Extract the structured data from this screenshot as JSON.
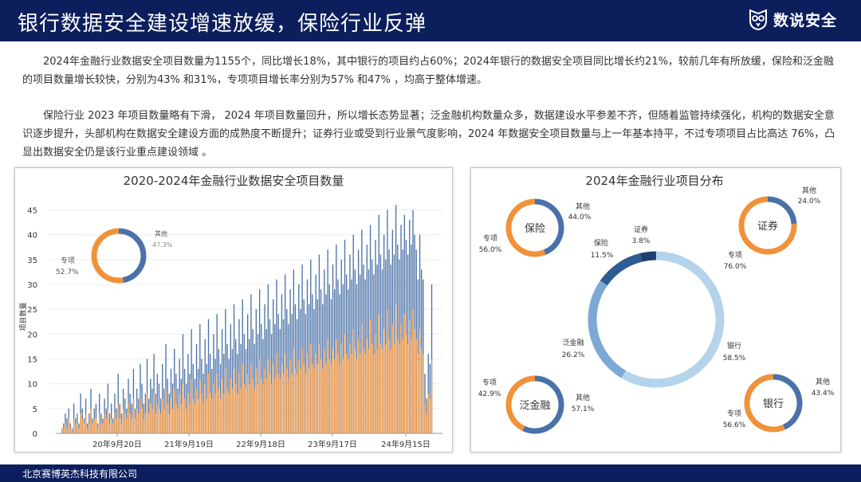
{
  "header": {
    "title": "银行数据安全建设增速放缓，保险行业反弹",
    "brand": "数说安全"
  },
  "paragraphs": [
    "2024年金融行业数据安全项目数量为1155个，同比增长18%，其中银行的项目约占60%；2024年银行的数据安全项目同比增长约21%，较前几年有所放缓，保险和泛金融的项目数量增长较快，分别为43% 和31%，专项项目增长率分别为57% 和47% ，均高于整体增速。",
    "保险行业 2023 年项目数量略有下滑， 2024 年项目数量回升，所以增长态势显著；泛金融机构数量众多，数据建设水平参差不齐，但随着监管持续强化，机构的数据安全意识逐步提升，头部机构在数据安全建设方面的成熟度不断提升；证券行业或受到行业景气度影响，2024 年数据安全项目数量与上一年基本持平，不过专项项目占比高达 76%，凸显出数据安全仍是该行业重点建设领域 。"
  ],
  "footer": {
    "company": "北京赛博英杰科技有限公司"
  },
  "colors": {
    "header_bg": "#0c1f5c",
    "blue": "#4a72a8",
    "orange": "#f0923a",
    "light_blue": "#b3d4ec",
    "mid_blue": "#7ca9d4",
    "dark_blue": "#2e5c94",
    "navy": "#1e3f6f"
  },
  "chart_data": [
    {
      "type": "bar",
      "title": "2020-2024年金融行业数据安全项目数量",
      "ylabel": "项目数量",
      "ylim": [
        0,
        47
      ],
      "yticks": [
        0,
        5,
        10,
        15,
        20,
        25,
        30,
        35,
        40,
        45
      ],
      "xtick_labels": [
        "20年9月20日",
        "21年9月19日",
        "22年9月18日",
        "23年9月17日",
        "24年9月15日"
      ],
      "note": "weekly stacked bars; blue = 其他, orange = 专项 (approximate readings)",
      "series": [
        {
          "name": "其他",
          "values": [
            1,
            2,
            4,
            3,
            5,
            2,
            1,
            6,
            3,
            4,
            2,
            8,
            5,
            3,
            7,
            2,
            4,
            9,
            3,
            5,
            6,
            2,
            8,
            4,
            3,
            7,
            5,
            10,
            4,
            6,
            3,
            8,
            5,
            12,
            6,
            4,
            9,
            7,
            5,
            11,
            8,
            6,
            13,
            5,
            9,
            7,
            14,
            10,
            6,
            8,
            15,
            7,
            11,
            9,
            16,
            8,
            12,
            10,
            7,
            14,
            9,
            18,
            11,
            8,
            13,
            10,
            17,
            12,
            9,
            15,
            11,
            20,
            13,
            10,
            16,
            12,
            21,
            14,
            11,
            18,
            13,
            22,
            15,
            12,
            19,
            14,
            23,
            16,
            13,
            20,
            15,
            24,
            17,
            14,
            21,
            16,
            25,
            18,
            15,
            22,
            17,
            26,
            19,
            16,
            23,
            18,
            27,
            20,
            17,
            24,
            19,
            28,
            21,
            18,
            25,
            20,
            29,
            22,
            19,
            26,
            21,
            30,
            23,
            20,
            27,
            22,
            31,
            24,
            21,
            28,
            23,
            32,
            25,
            22,
            29,
            24,
            33,
            26,
            23,
            30,
            25,
            34,
            27,
            24,
            31,
            26,
            35,
            28,
            25,
            32,
            27,
            36,
            29,
            26,
            33,
            28,
            37,
            30,
            27,
            34,
            29,
            38,
            31,
            28,
            35,
            30,
            39,
            32,
            29,
            36,
            31,
            40,
            33,
            30,
            37,
            32,
            41,
            34,
            31,
            38,
            33,
            42,
            35,
            32,
            39,
            34,
            44,
            36,
            33,
            40,
            35,
            45,
            37,
            34,
            41,
            36,
            46,
            38,
            35,
            42,
            37,
            44,
            39,
            36,
            43,
            38,
            45,
            40,
            37,
            31,
            40,
            33,
            31,
            12,
            7,
            16,
            14,
            30
          ],
          "note": "total bar height per week"
        },
        {
          "name": "专项",
          "values": [
            1,
            1,
            2,
            1,
            3,
            1,
            0,
            3,
            2,
            2,
            1,
            4,
            3,
            2,
            4,
            1,
            2,
            5,
            2,
            3,
            3,
            1,
            4,
            2,
            2,
            4,
            3,
            5,
            2,
            3,
            2,
            4,
            3,
            6,
            3,
            2,
            5,
            4,
            3,
            6,
            4,
            3,
            7,
            3,
            5,
            4,
            7,
            5,
            3,
            4,
            8,
            4,
            6,
            5,
            8,
            4,
            6,
            5,
            4,
            7,
            5,
            9,
            6,
            4,
            7,
            5,
            9,
            6,
            5,
            8,
            6,
            10,
            7,
            5,
            8,
            6,
            11,
            7,
            6,
            9,
            7,
            11,
            8,
            6,
            10,
            7,
            12,
            8,
            7,
            10,
            8,
            12,
            9,
            7,
            11,
            8,
            13,
            9,
            8,
            11,
            9,
            13,
            10,
            8,
            12,
            9,
            14,
            10,
            9,
            12,
            10,
            14,
            11,
            9,
            13,
            10,
            15,
            11,
            10,
            13,
            11,
            15,
            12,
            10,
            14,
            11,
            16,
            12,
            11,
            14,
            12,
            16,
            13,
            11,
            15,
            12,
            17,
            13,
            12,
            15,
            13,
            17,
            14,
            12,
            16,
            13,
            18,
            14,
            13,
            16,
            14,
            18,
            15,
            13,
            17,
            14,
            19,
            15,
            14,
            17,
            15,
            19,
            16,
            14,
            18,
            15,
            20,
            16,
            15,
            18,
            16,
            21,
            17,
            15,
            19,
            16,
            22,
            17,
            16,
            19,
            17,
            23,
            18,
            16,
            20,
            17,
            24,
            18,
            17,
            21,
            18,
            25,
            19,
            17,
            22,
            18,
            26,
            19,
            18,
            22,
            19,
            24,
            20,
            18,
            23,
            19,
            25,
            21,
            19,
            16,
            21,
            17,
            16,
            6,
            4,
            8,
            7,
            15
          ]
        }
      ],
      "inset_donut": {
        "segments": [
          {
            "name": "其他",
            "pct": 47.3
          },
          {
            "name": "专项",
            "pct": 52.7
          }
        ],
        "labels": [
          "其他",
          "47.3%",
          "专项",
          "52.7%"
        ]
      }
    },
    {
      "type": "pie",
      "title": "2024年金融行业项目分布",
      "slices": [
        {
          "name": "银行",
          "pct": 58.5,
          "label": "58.5%"
        },
        {
          "name": "泛金融",
          "pct": 26.2,
          "label": "26.2%"
        },
        {
          "name": "保险",
          "pct": 11.5,
          "label": "11.5%"
        },
        {
          "name": "证券",
          "pct": 3.8,
          "label": "3.8%"
        }
      ],
      "sub_donuts": [
        {
          "center": "保险",
          "segments": [
            {
              "name": "其他",
              "pct": 44.0
            },
            {
              "name": "专项",
              "pct": 56.0
            }
          ],
          "labels": [
            "其他",
            "44.0%",
            "专项",
            "56.0%"
          ]
        },
        {
          "center": "证券",
          "segments": [
            {
              "name": "其他",
              "pct": 24.0
            },
            {
              "name": "专项",
              "pct": 76.0
            }
          ],
          "labels": [
            "其他",
            "24.0%",
            "专项",
            "76.0%"
          ]
        },
        {
          "center": "泛金融",
          "segments": [
            {
              "name": "其他",
              "pct": 57.1
            },
            {
              "name": "专项",
              "pct": 42.9
            }
          ],
          "labels": [
            "其他",
            "57.1%",
            "专项",
            "42.9%"
          ]
        },
        {
          "center": "银行",
          "segments": [
            {
              "name": "其他",
              "pct": 43.4
            },
            {
              "name": "专项",
              "pct": 56.6
            }
          ],
          "labels": [
            "其他",
            "43.4%",
            "专项",
            "56.6%"
          ]
        }
      ]
    }
  ]
}
